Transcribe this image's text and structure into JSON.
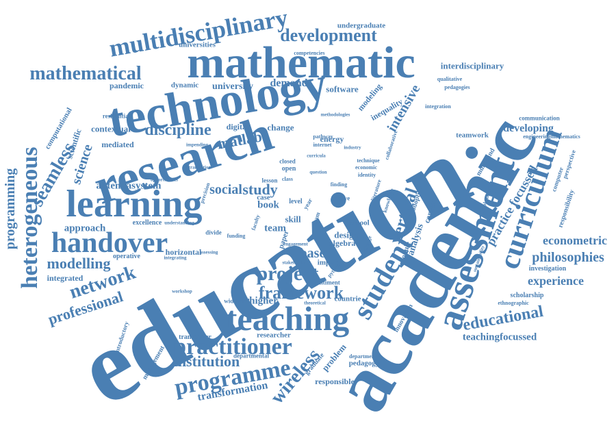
{
  "cloud": {
    "color": "#4a7fb3",
    "words": {
      "education": "education",
      "academic": "academic",
      "research": "research",
      "technology": "technology",
      "mathematic": "mathematic",
      "learning": "learning",
      "assessment": "assessment",
      "curriculum": "curriculum",
      "teaching": "teaching",
      "handover": "handover",
      "student": "student",
      "multidisciplinary": "multidisciplinary",
      "development": "development",
      "mathematical": "mathematical",
      "heterogeneous": "heterogeneous",
      "programming": "programming",
      "seamless": "seamless",
      "practitioner": "practitioner",
      "programme": "programme",
      "project": "project",
      "framework": "framework",
      "network": "network",
      "modelling": "modelling",
      "professional": "professional",
      "institution": "institution",
      "transformation": "transformation",
      "wireless": "wireless",
      "vertical": "vertical",
      "educational": "educational",
      "philosophies": "philosophies",
      "experience": "experience",
      "econometric": "econometric",
      "teachingfocussed": "teachingfocussed",
      "discipline": "discipline",
      "matlab": "matlab",
      "social": "social",
      "study": "study",
      "antennasystem": "antennasystem",
      "science": "science",
      "approach": "approach",
      "based": "based",
      "intensive": "intensive",
      "practice_focussed": "practice focussed",
      "developing": "developing",
      "interdisciplinary": "interdisciplinary",
      "undergraduate": "undergraduate",
      "universities": "universities",
      "competencies": "competencies",
      "pandemic": "pandemic",
      "dynamic": "dynamic",
      "university": "university",
      "demand": "demand",
      "software": "software",
      "modeling": "modeling",
      "inequality": "inequality",
      "qualitative": "qualitative",
      "pedagogies": "pedagogies",
      "contextual": "contextual",
      "mediated": "mediated",
      "digital": "digital",
      "change": "change",
      "energy": "energy",
      "communication": "communication",
      "engineeringmathematics": "engineeringmathematics",
      "teamwork": "teamwork",
      "computational": "computational",
      "scientific": "scientific",
      "residential": "residential",
      "excellence": "excellence",
      "operative": "operative",
      "horizontal": "horizontal",
      "integrated": "integrated",
      "design": "design",
      "algebra": "algebra",
      "impact": "impact",
      "higher": "higher",
      "countrie": "countrie",
      "sentiment": "sentiment",
      "wideband": "wideband",
      "transceiver": "transceiver",
      "researcher": "researcher",
      "problem": "problem",
      "pedagogy": "pedagogy",
      "responsible": "responsible",
      "innovation": "innovation",
      "module": "module",
      "analysis": "analysis",
      "career": "career",
      "adoption": "adoption",
      "multiband": "multiband",
      "computer": "computer",
      "responsibility": "responsibility",
      "perspective": "perspective",
      "investigation": "investigation",
      "scholarship": "scholarship",
      "ethnographic": "ethnographic",
      "management": "management",
      "departmental": "departmental",
      "department": "department",
      "graduate": "graduate",
      "introductory": "introductory",
      "team": "team",
      "skill": "skill",
      "case": "case",
      "book": "book",
      "school": "school",
      "level": "level",
      "lesson": "lesson",
      "closed": "closed",
      "open": "open",
      "pathway": "pathway",
      "internet": "internet",
      "economic": "economic",
      "identity": "identity",
      "technique": "technique",
      "active": "active",
      "finding": "finding",
      "python": "python",
      "exam": "exam",
      "paper": "paper",
      "divide": "divide",
      "funding": "funding",
      "year": "year",
      "integration": "integration",
      "methodologies": "methodologies",
      "knowledge": "knowledge",
      "challenge": "challenge",
      "literature": "literature",
      "question": "question",
      "industry": "industry",
      "curricula": "curricula",
      "engagement": "engagement",
      "faculty": "faculty",
      "class": "class",
      "impending": "impending",
      "opportunities": "opportunities",
      "understanding": "understanding",
      "integrating": "integrating",
      "assessing": "assessing",
      "workshop": "workshop",
      "theoretical": "theoretical",
      "stakeholder": "stakeholder",
      "translation": "translation",
      "precision": "precision",
      "collaborative": "collaborative",
      "implementing": "implementing",
      "sustainability": "sustainability"
    }
  }
}
